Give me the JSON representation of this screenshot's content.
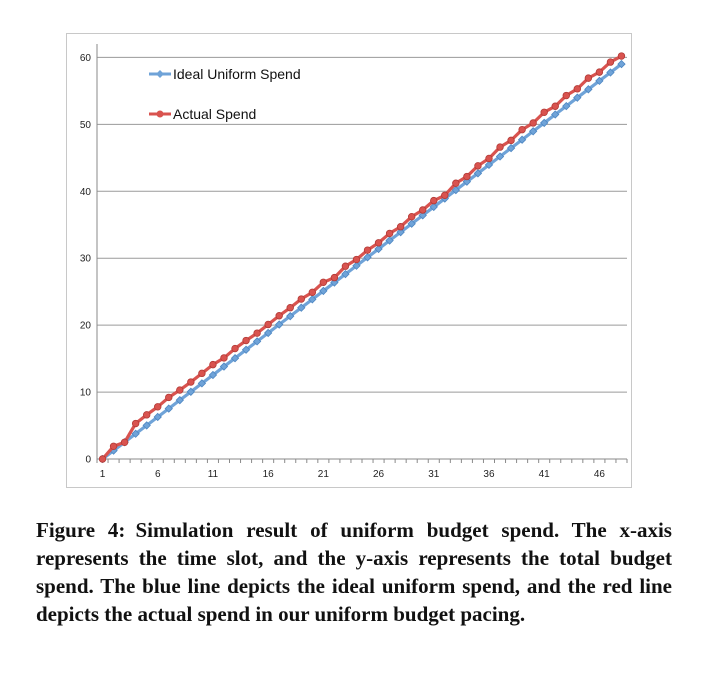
{
  "chart_data": {
    "type": "line",
    "x": [
      1,
      2,
      3,
      4,
      5,
      6,
      7,
      8,
      9,
      10,
      11,
      12,
      13,
      14,
      15,
      16,
      17,
      18,
      19,
      20,
      21,
      22,
      23,
      24,
      25,
      26,
      27,
      28,
      29,
      30,
      31,
      32,
      33,
      34,
      35,
      36,
      37,
      38,
      39,
      40,
      41,
      42,
      43,
      44,
      45,
      46,
      47,
      48
    ],
    "x_tick_labels": [
      "1",
      "6",
      "11",
      "16",
      "21",
      "26",
      "31",
      "36",
      "41",
      "46"
    ],
    "y_tick_labels": [
      "0",
      "10",
      "20",
      "30",
      "40",
      "50",
      "60"
    ],
    "ylim": [
      0,
      62
    ],
    "xlim": [
      0.5,
      48.5
    ],
    "grid": "horizontal",
    "legend_placement": "top-left",
    "series": [
      {
        "name": "Ideal Uniform Spend",
        "color": "#6fa3d8",
        "values": [
          0,
          1.26,
          2.51,
          3.77,
          5.02,
          6.28,
          7.53,
          8.79,
          10.04,
          11.3,
          12.55,
          13.81,
          15.06,
          16.32,
          17.57,
          18.83,
          20.09,
          21.34,
          22.6,
          23.85,
          25.11,
          26.36,
          27.62,
          28.87,
          30.13,
          31.38,
          32.64,
          33.89,
          35.15,
          36.4,
          37.66,
          38.91,
          40.17,
          41.43,
          42.68,
          43.94,
          45.19,
          46.45,
          47.7,
          48.96,
          50.21,
          51.47,
          52.72,
          53.98,
          55.23,
          56.49,
          57.74,
          59.0
        ]
      },
      {
        "name": "Actual Spend",
        "color": "#d9534f",
        "values": [
          0,
          1.9,
          2.5,
          5.3,
          6.6,
          7.8,
          9.2,
          10.3,
          11.5,
          12.8,
          14.1,
          15.1,
          16.5,
          17.7,
          18.8,
          20.1,
          21.4,
          22.6,
          23.9,
          24.9,
          26.4,
          27.1,
          28.8,
          29.8,
          31.2,
          32.3,
          33.7,
          34.7,
          36.2,
          37.2,
          38.6,
          39.4,
          41.2,
          42.2,
          43.8,
          44.9,
          46.6,
          47.6,
          49.2,
          50.2,
          51.8,
          52.7,
          54.3,
          55.3,
          56.9,
          57.8,
          59.3,
          60.2
        ]
      }
    ]
  },
  "caption": {
    "label": "Figure 4:",
    "text": "Simulation result of uniform budget spend. The x-axis represents the time slot, and the y-axis represents the total budget spend. The blue line depicts the ideal uniform spend, and the red line depicts the actual spend in our uniform budget pacing."
  }
}
